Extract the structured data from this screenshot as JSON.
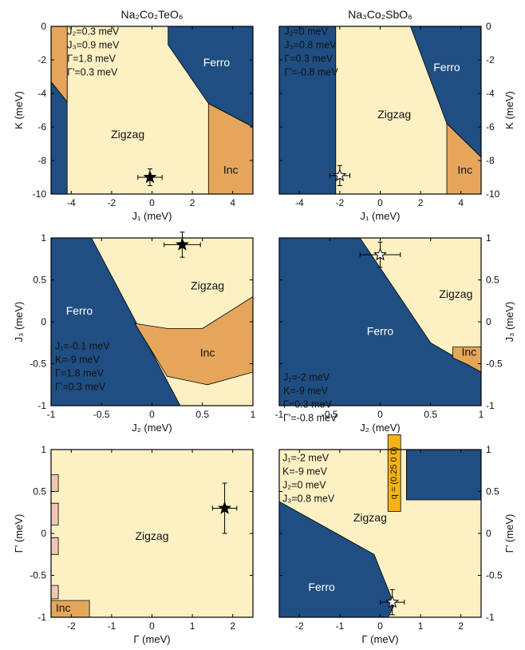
{
  "colors": {
    "ferro": "#1f4e82",
    "zigzag": "#fdf1c4",
    "inc": "#e5a65c",
    "pink": "#efc7b3",
    "qbox": "#f5b315",
    "frame": "#000000"
  },
  "chart_data": [
    {
      "id": "a",
      "type": "area",
      "title": "Na₂Co₂TeO₆",
      "xlabel": "J₁ (meV)",
      "ylabel": "K (meV)",
      "yaxis_side": "left",
      "xlim": [
        -5,
        5
      ],
      "ylim": [
        -10,
        0
      ],
      "xticks": [
        -4,
        -2,
        0,
        2,
        4
      ],
      "yticks": [
        0,
        -2,
        -4,
        -6,
        -8,
        -10
      ],
      "regions": [
        {
          "phase": "zigzag",
          "points": [
            [
              -5,
              -10
            ],
            [
              5,
              -10
            ],
            [
              5,
              0
            ],
            [
              -5,
              0
            ]
          ]
        },
        {
          "phase": "ferro",
          "points": [
            [
              -5,
              -10
            ],
            [
              -4.2,
              -10
            ],
            [
              -4.2,
              0
            ],
            [
              -5,
              0
            ]
          ]
        },
        {
          "phase": "inc",
          "points": [
            [
              -5,
              0
            ],
            [
              -4.2,
              0
            ],
            [
              -4.2,
              -4.5
            ],
            [
              -5,
              -3.3
            ]
          ]
        },
        {
          "phase": "ferro",
          "points": [
            [
              0.8,
              0
            ],
            [
              5,
              0
            ],
            [
              5,
              -6
            ],
            [
              2.8,
              -4.6
            ],
            [
              0.8,
              -1.1
            ]
          ]
        },
        {
          "phase": "inc",
          "points": [
            [
              2.8,
              -4.6
            ],
            [
              5,
              -6
            ],
            [
              5,
              -10
            ],
            [
              2.8,
              -10
            ]
          ]
        }
      ],
      "labels": [
        {
          "text": "Ferro",
          "x": 3.2,
          "y": -2.2,
          "color": "#ffffff"
        },
        {
          "text": "Zigzag",
          "x": -1.2,
          "y": -6.5,
          "color": "#111111"
        },
        {
          "text": "Inc",
          "x": 3.9,
          "y": -8.6,
          "color": "#111111"
        }
      ],
      "notes": [
        "J₂=0.3 meV",
        "J₃=0.9 meV",
        "Γ=1.8 meV",
        "Γ'=0.3 meV"
      ],
      "notes_anchor": {
        "x": -4.2,
        "y": -0.5
      },
      "marker": {
        "x": -0.1,
        "y": -9.0,
        "xerr": 0.6,
        "yerr": 0.5,
        "filled": true
      }
    },
    {
      "id": "b",
      "type": "area",
      "title": "Na₃Co₂SbO₆",
      "xlabel": "J₁ (meV)",
      "ylabel": "K (meV)",
      "yaxis_side": "right",
      "xlim": [
        -5,
        5
      ],
      "ylim": [
        -10,
        0
      ],
      "xticks": [
        -4,
        -2,
        0,
        2,
        4
      ],
      "yticks": [
        0,
        -2,
        -4,
        -6,
        -8,
        -10
      ],
      "regions": [
        {
          "phase": "zigzag",
          "points": [
            [
              -5,
              -10
            ],
            [
              5,
              -10
            ],
            [
              5,
              0
            ],
            [
              -5,
              0
            ]
          ]
        },
        {
          "phase": "ferro",
          "points": [
            [
              -5,
              -10
            ],
            [
              -2.2,
              -10
            ],
            [
              -2.2,
              0
            ],
            [
              -5,
              0
            ]
          ]
        },
        {
          "phase": "ferro",
          "points": [
            [
              1.5,
              0
            ],
            [
              5,
              0
            ],
            [
              5,
              -7.8
            ],
            [
              3.3,
              -5.8
            ]
          ]
        },
        {
          "phase": "inc",
          "points": [
            [
              3.3,
              -5.8
            ],
            [
              5,
              -7.8
            ],
            [
              5,
              -10
            ],
            [
              3.3,
              -10
            ]
          ]
        }
      ],
      "labels": [
        {
          "text": "Ferro",
          "x": 3.3,
          "y": -2.5,
          "color": "#ffffff"
        },
        {
          "text": "Zigzag",
          "x": 0.7,
          "y": -5.3,
          "color": "#111111"
        },
        {
          "text": "Inc",
          "x": 4.2,
          "y": -8.6,
          "color": "#111111"
        }
      ],
      "notes": [
        "J₂=0 meV",
        "J₃=0.8 meV",
        "Γ=0.3 meV",
        "Γ'=-0.8 meV"
      ],
      "notes_anchor": {
        "x": -4.75,
        "y": -0.5
      },
      "marker": {
        "x": -2.0,
        "y": -8.9,
        "xerr": 0.5,
        "yerr": 0.6,
        "filled": false
      }
    },
    {
      "id": "c",
      "type": "area",
      "title": "",
      "xlabel": "J₂ (meV)",
      "ylabel": "J₃ (meV)",
      "yaxis_side": "left",
      "xlim": [
        -1,
        1
      ],
      "ylim": [
        -1,
        1
      ],
      "xticks": [
        -1,
        -0.5,
        0,
        0.5,
        1
      ],
      "yticks": [
        1,
        0.5,
        0,
        -0.5,
        -1
      ],
      "regions": [
        {
          "phase": "zigzag",
          "points": [
            [
              -1,
              -1
            ],
            [
              1,
              -1
            ],
            [
              1,
              1
            ],
            [
              -1,
              1
            ]
          ]
        },
        {
          "phase": "ferro",
          "points": [
            [
              -1,
              -1
            ],
            [
              0.28,
              -1
            ],
            [
              -0.6,
              1
            ],
            [
              -1,
              1
            ]
          ]
        },
        {
          "phase": "inc",
          "points": [
            [
              -0.17,
              -0.02
            ],
            [
              0.15,
              -0.08
            ],
            [
              0.5,
              -0.08
            ],
            [
              1,
              0.3
            ],
            [
              1,
              -0.6
            ],
            [
              0.55,
              -0.75
            ],
            [
              0.15,
              -0.65
            ],
            [
              0.1,
              -0.55
            ]
          ]
        }
      ],
      "labels": [
        {
          "text": "Ferro",
          "x": -0.72,
          "y": 0.12,
          "color": "#ffffff"
        },
        {
          "text": "Zigzag",
          "x": 0.55,
          "y": 0.42,
          "color": "#111111"
        },
        {
          "text": "Inc",
          "x": 0.55,
          "y": -0.38,
          "color": "#111111"
        }
      ],
      "notes": [
        "J₁=-0.1 meV",
        "K=-9 meV",
        "Γ=1.8 meV",
        "Γ'=0.3 meV"
      ],
      "notes_anchor": {
        "x": -0.96,
        "y": -0.33
      },
      "marker": {
        "x": 0.3,
        "y": 0.92,
        "xerr": 0.18,
        "yerr": 0.15,
        "filled": true
      }
    },
    {
      "id": "d",
      "type": "area",
      "title": "",
      "xlabel": "J₂ (meV)",
      "ylabel": "J₃ (meV)",
      "yaxis_side": "right",
      "xlim": [
        -1,
        1
      ],
      "ylim": [
        -1,
        1
      ],
      "xticks": [
        -1,
        -0.5,
        0,
        0.5,
        1
      ],
      "yticks": [
        1,
        0.5,
        0,
        -0.5,
        -1
      ],
      "regions": [
        {
          "phase": "zigzag",
          "points": [
            [
              -1,
              -1
            ],
            [
              1,
              -1
            ],
            [
              1,
              1
            ],
            [
              -1,
              1
            ]
          ]
        },
        {
          "phase": "ferro",
          "points": [
            [
              -1,
              -1
            ],
            [
              1,
              -1
            ],
            [
              1,
              -0.6
            ],
            [
              0.5,
              -0.25
            ],
            [
              -0.2,
              1
            ],
            [
              -1,
              1
            ]
          ]
        },
        {
          "phase": "inc",
          "points": [
            [
              0.72,
              -0.3
            ],
            [
              1,
              -0.3
            ],
            [
              1,
              -0.6
            ],
            [
              0.85,
              -0.5
            ],
            [
              0.72,
              -0.43
            ]
          ]
        }
      ],
      "labels": [
        {
          "text": "Ferro",
          "x": 0.0,
          "y": -0.12,
          "color": "#ffffff"
        },
        {
          "text": "Zigzag",
          "x": 0.75,
          "y": 0.32,
          "color": "#111111"
        },
        {
          "text": "Inc",
          "x": 0.88,
          "y": -0.37,
          "color": "#111111"
        }
      ],
      "notes": [
        "J₁=-2 meV",
        "K=-9 meV",
        "Γ=0.3 meV",
        "Γ'=-0.8 meV"
      ],
      "notes_anchor": {
        "x": -0.96,
        "y": -0.7
      },
      "marker": {
        "x": 0.0,
        "y": 0.8,
        "xerr": 0.2,
        "yerr": 0.15,
        "filled": false
      }
    },
    {
      "id": "e",
      "type": "area",
      "title": "",
      "xlabel": "Γ (meV)",
      "ylabel": "Γ' (meV)",
      "yaxis_side": "left",
      "xlim": [
        -2.5,
        2.5
      ],
      "ylim": [
        -1,
        1
      ],
      "xticks": [
        -2,
        -1,
        0,
        1,
        2
      ],
      "yticks": [
        1,
        0.5,
        0,
        -0.5,
        -1
      ],
      "regions": [
        {
          "phase": "zigzag",
          "points": [
            [
              -2.5,
              -1
            ],
            [
              2.5,
              -1
            ],
            [
              2.5,
              1
            ],
            [
              -2.5,
              1
            ]
          ]
        },
        {
          "phase": "pink",
          "points": [
            [
              -2.5,
              0.5
            ],
            [
              -2.32,
              0.5
            ],
            [
              -2.32,
              0.7
            ],
            [
              -2.5,
              0.7
            ]
          ]
        },
        {
          "phase": "pink",
          "points": [
            [
              -2.5,
              0.1
            ],
            [
              -2.32,
              0.1
            ],
            [
              -2.32,
              0.36
            ],
            [
              -2.5,
              0.36
            ]
          ]
        },
        {
          "phase": "pink",
          "points": [
            [
              -2.5,
              -0.25
            ],
            [
              -2.32,
              -0.25
            ],
            [
              -2.32,
              -0.05
            ],
            [
              -2.5,
              -0.05
            ]
          ]
        },
        {
          "phase": "pink",
          "points": [
            [
              -2.5,
              -0.78
            ],
            [
              -2.32,
              -0.78
            ],
            [
              -2.32,
              -0.62
            ],
            [
              -2.5,
              -0.62
            ]
          ]
        },
        {
          "phase": "inc",
          "points": [
            [
              -2.5,
              -1
            ],
            [
              -1.55,
              -1
            ],
            [
              -1.55,
              -0.8
            ],
            [
              -2.5,
              -0.8
            ]
          ]
        }
      ],
      "labels": [
        {
          "text": "Zigzag",
          "x": 0.0,
          "y": -0.04,
          "color": "#111111"
        },
        {
          "text": "Inc",
          "x": -2.2,
          "y": -0.9,
          "color": "#111111"
        }
      ],
      "notes": [],
      "notes_anchor": {
        "x": 0,
        "y": 0
      },
      "marker": {
        "x": 1.8,
        "y": 0.3,
        "xerr": 0.3,
        "yerr": 0.3,
        "filled": true
      }
    },
    {
      "id": "f",
      "type": "area",
      "title": "",
      "xlabel": "Γ (meV)",
      "ylabel": "Γ' (meV)",
      "yaxis_side": "right",
      "xlim": [
        -2.5,
        2.5
      ],
      "ylim": [
        -1,
        1
      ],
      "xticks": [
        -2,
        -1,
        0,
        1,
        2
      ],
      "yticks": [
        1,
        0.5,
        0,
        -0.5,
        -1
      ],
      "regions": [
        {
          "phase": "zigzag",
          "points": [
            [
              -2.5,
              -1
            ],
            [
              2.5,
              -1
            ],
            [
              2.5,
              1
            ],
            [
              -2.5,
              1
            ]
          ]
        },
        {
          "phase": "ferro",
          "points": [
            [
              -2.5,
              -1
            ],
            [
              0.2,
              -1
            ],
            [
              0.35,
              -0.85
            ],
            [
              -0.15,
              -0.25
            ],
            [
              -2.5,
              0.38
            ]
          ]
        },
        {
          "phase": "ferro",
          "points": [
            [
              0.65,
              1
            ],
            [
              2.5,
              1
            ],
            [
              2.5,
              0.4
            ],
            [
              0.65,
              0.4
            ]
          ]
        }
      ],
      "labels": [
        {
          "text": "Ferro",
          "x": -1.45,
          "y": -0.65,
          "color": "#ffffff"
        },
        {
          "text": "Zigzag",
          "x": -0.25,
          "y": 0.18,
          "color": "#111111"
        }
      ],
      "notes": [
        "J₁=-2 meV",
        "K=-9 meV",
        "J₂=0 meV",
        "J₃=0.8 meV"
      ],
      "notes_anchor": {
        "x": -2.42,
        "y": 0.86
      },
      "q_label": {
        "text": "q = (0.25 0 0)",
        "x": 0.35,
        "y": 0.72
      },
      "marker": {
        "x": 0.3,
        "y": -0.82,
        "xerr": 0.3,
        "yerr": 0.15,
        "filled": false
      }
    }
  ]
}
